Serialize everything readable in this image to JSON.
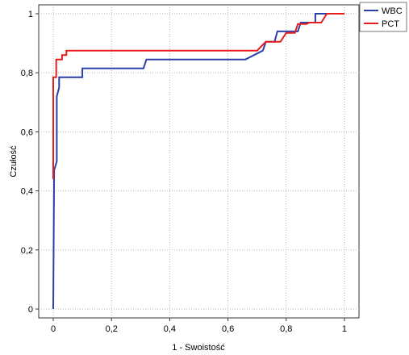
{
  "chart_data": {
    "type": "line",
    "title": "",
    "xlabel": "1 - Swoistość",
    "ylabel": "Czułość",
    "xlim": [
      -0.05,
      1.05
    ],
    "ylim": [
      -0.03,
      1.03
    ],
    "x_ticks": [
      0,
      0.2,
      0.4,
      0.6,
      0.8,
      1
    ],
    "x_tick_labels": [
      "0",
      "0,2",
      "0,4",
      "0,6",
      "0,8",
      "1"
    ],
    "y_ticks": [
      0,
      0.2,
      0.4,
      0.6,
      0.8,
      1
    ],
    "y_tick_labels": [
      "0",
      "0,2",
      "0,4",
      "0,6",
      "0,8",
      "1"
    ],
    "grid": true,
    "legend_position": "top-right-outside",
    "series": [
      {
        "name": "WBC",
        "color": "#2b3fa8",
        "x": [
          0,
          0.003,
          0.012,
          0.012,
          0.02,
          0.02,
          0.1,
          0.1,
          0.31,
          0.32,
          0.66,
          0.72,
          0.73,
          0.76,
          0.77,
          0.84,
          0.85,
          0.9,
          0.9,
          1.0
        ],
        "y": [
          0,
          0.47,
          0.5,
          0.72,
          0.75,
          0.785,
          0.785,
          0.815,
          0.815,
          0.845,
          0.845,
          0.875,
          0.905,
          0.905,
          0.94,
          0.94,
          0.97,
          0.97,
          1.0,
          1.0
        ]
      },
      {
        "name": "PCT",
        "color": "#e81c1c",
        "x": [
          0,
          0,
          0.01,
          0.01,
          0.03,
          0.03,
          0.045,
          0.045,
          0.7,
          0.73,
          0.78,
          0.8,
          0.83,
          0.84,
          0.87,
          0.88,
          0.92,
          0.94,
          1.0
        ],
        "y": [
          0.44,
          0.785,
          0.785,
          0.845,
          0.845,
          0.86,
          0.86,
          0.875,
          0.875,
          0.905,
          0.905,
          0.935,
          0.935,
          0.965,
          0.965,
          0.97,
          0.97,
          1.0,
          1.0
        ]
      }
    ]
  }
}
